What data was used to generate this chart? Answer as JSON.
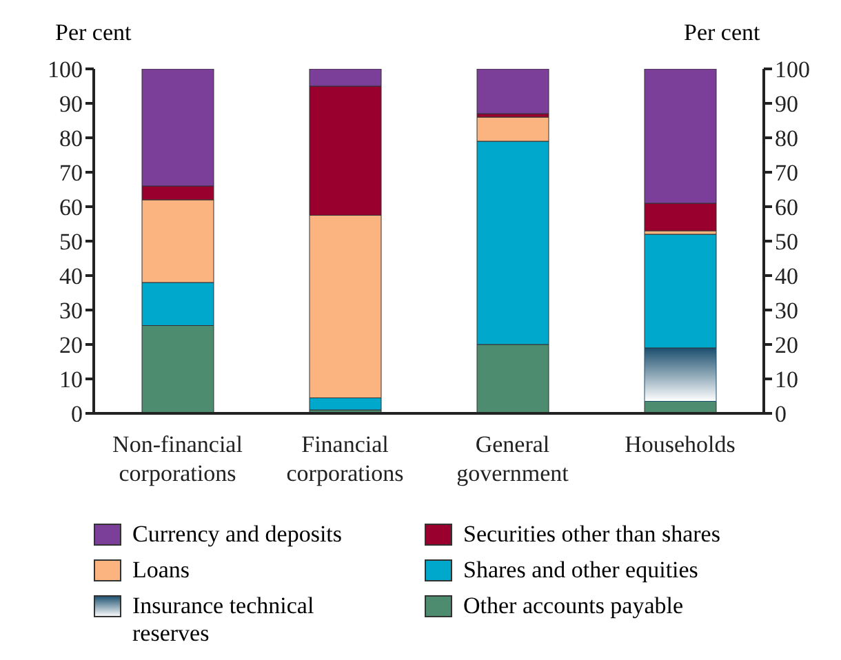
{
  "chart_data": {
    "type": "bar",
    "stacked": true,
    "categories": [
      "Non-financial corporations",
      "Financial corporations",
      "General government",
      "Households"
    ],
    "ylabel": "Per cent",
    "y2label": "Per cent",
    "ylim": [
      0,
      100
    ],
    "yticks": [
      0,
      10,
      20,
      30,
      40,
      50,
      60,
      70,
      80,
      90,
      100
    ],
    "y2lim": [
      0,
      100
    ],
    "y2ticks": [
      0,
      10,
      20,
      30,
      40,
      50,
      60,
      70,
      80,
      90,
      100
    ],
    "grid": false,
    "legend": "bottom",
    "series": [
      {
        "name": "Other accounts payable",
        "color": "#4e8c70",
        "values": [
          25.5,
          1,
          20,
          3.5
        ]
      },
      {
        "name": "Insurance technical reserves",
        "color": "#1b4f6e",
        "values": [
          0,
          0,
          0,
          15.5
        ]
      },
      {
        "name": "Shares and other equities",
        "color": "#00a8cc",
        "values": [
          12.5,
          3.5,
          59,
          33
        ]
      },
      {
        "name": "Loans",
        "color": "#fbb380",
        "values": [
          24,
          53,
          7,
          1
        ]
      },
      {
        "name": "Securities other than shares",
        "color": "#99002e",
        "values": [
          4,
          37.5,
          1,
          8
        ]
      },
      {
        "name": "Currency and deposits",
        "color": "#7b3f99",
        "values": [
          34,
          5,
          13,
          39
        ]
      }
    ]
  }
}
